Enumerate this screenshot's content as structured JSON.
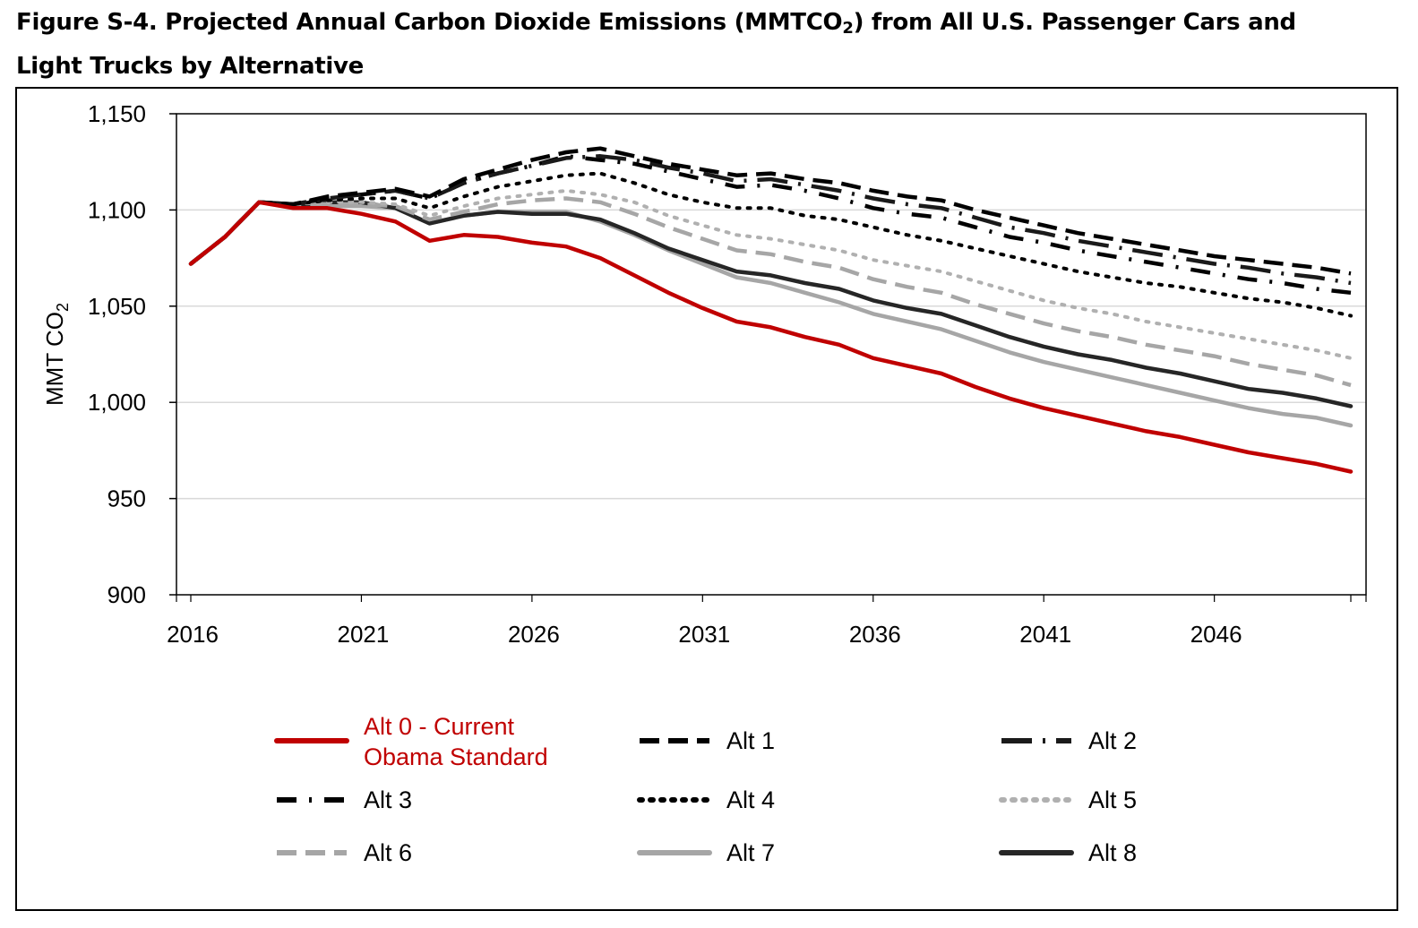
{
  "title": {
    "line1_pre": "Figure S-4. Projected Annual Carbon Dioxide Emissions (MMTCO",
    "line1_sub": "2",
    "line1_post": ") from All U.S. Passenger Cars and",
    "line2": "Light Trucks by Alternative"
  },
  "chart_data": {
    "type": "line",
    "title": "Figure S-4. Projected Annual Carbon Dioxide Emissions (MMTCO2) from All U.S. Passenger Cars and Light Trucks by Alternative",
    "ylabel": "MMT CO2",
    "ylabel_main": "MMT CO",
    "ylabel_sub": "2",
    "xlabel": "",
    "ylim": [
      900,
      1150
    ],
    "xlim": [
      2016,
      2050
    ],
    "yticks": [
      900,
      950,
      1000,
      1050,
      1100,
      1150
    ],
    "ytick_labels": [
      "900",
      "950",
      "1,000",
      "1,050",
      "1,100",
      "1,150"
    ],
    "xticks": [
      2016,
      2021,
      2026,
      2031,
      2036,
      2041,
      2046
    ],
    "xtick_labels": [
      "2016",
      "2021",
      "2026",
      "2031",
      "2036",
      "2041",
      "2046"
    ],
    "grid": "horizontal",
    "legend_position": "bottom",
    "x": [
      2016,
      2017,
      2018,
      2019,
      2020,
      2021,
      2022,
      2023,
      2024,
      2025,
      2026,
      2027,
      2028,
      2029,
      2030,
      2031,
      2032,
      2033,
      2034,
      2035,
      2036,
      2037,
      2038,
      2039,
      2040,
      2041,
      2042,
      2043,
      2044,
      2045,
      2046,
      2047,
      2048,
      2049,
      2050
    ],
    "series": [
      {
        "name": "Alt 0 - Current Obama Standard",
        "legend_lines": [
          "Alt 0 - Current",
          "Obama Standard"
        ],
        "color": "#c00000",
        "style": "solid",
        "values": [
          1072,
          1086,
          1104,
          1101,
          1101,
          1098,
          1094,
          1084,
          1087,
          1086,
          1083,
          1081,
          1075,
          1066,
          1057,
          1049,
          1042,
          1039,
          1034,
          1030,
          1023,
          1019,
          1015,
          1008,
          1002,
          997,
          993,
          989,
          985,
          982,
          978,
          974,
          971,
          968,
          964
        ]
      },
      {
        "name": "Alt 1",
        "legend_lines": [
          "Alt 1"
        ],
        "color": "#000000",
        "style": "dash",
        "values": [
          1072,
          1086,
          1104,
          1103,
          1107,
          1109,
          1111,
          1107,
          1116,
          1121,
          1126,
          1130,
          1132,
          1128,
          1124,
          1121,
          1118,
          1119,
          1116,
          1114,
          1110,
          1107,
          1105,
          1100,
          1096,
          1092,
          1088,
          1085,
          1082,
          1079,
          1076,
          1074,
          1072,
          1070,
          1067
        ]
      },
      {
        "name": "Alt 2",
        "legend_lines": [
          "Alt 2"
        ],
        "color": "#1a1a1a",
        "style": "longdashdot",
        "values": [
          1072,
          1086,
          1104,
          1103,
          1106,
          1108,
          1110,
          1106,
          1114,
          1119,
          1123,
          1127,
          1128,
          1126,
          1122,
          1119,
          1115,
          1116,
          1113,
          1110,
          1106,
          1103,
          1101,
          1096,
          1091,
          1088,
          1084,
          1081,
          1078,
          1075,
          1072,
          1070,
          1067,
          1065,
          1062
        ]
      },
      {
        "name": "Alt 3",
        "legend_lines": [
          "Alt 3"
        ],
        "color": "#000000",
        "style": "dashdot",
        "values": [
          1072,
          1086,
          1104,
          1103,
          1106,
          1108,
          1110,
          1106,
          1114,
          1119,
          1123,
          1128,
          1126,
          1124,
          1120,
          1116,
          1112,
          1113,
          1110,
          1106,
          1101,
          1098,
          1096,
          1091,
          1086,
          1083,
          1079,
          1076,
          1073,
          1070,
          1067,
          1064,
          1062,
          1059,
          1057
        ]
      },
      {
        "name": "Alt 4",
        "legend_lines": [
          "Alt 4"
        ],
        "color": "#000000",
        "style": "dot",
        "values": [
          1072,
          1086,
          1104,
          1103,
          1105,
          1106,
          1106,
          1101,
          1107,
          1112,
          1115,
          1118,
          1119,
          1114,
          1108,
          1104,
          1101,
          1101,
          1097,
          1095,
          1091,
          1087,
          1084,
          1080,
          1076,
          1072,
          1068,
          1065,
          1062,
          1060,
          1057,
          1054,
          1052,
          1049,
          1045
        ]
      },
      {
        "name": "Alt 5",
        "legend_lines": [
          "Alt 5"
        ],
        "color": "#b0b0b0",
        "style": "dot",
        "values": [
          1072,
          1086,
          1104,
          1103,
          1104,
          1104,
          1103,
          1097,
          1102,
          1106,
          1108,
          1110,
          1108,
          1104,
          1097,
          1092,
          1087,
          1085,
          1082,
          1079,
          1074,
          1071,
          1068,
          1063,
          1058,
          1053,
          1049,
          1046,
          1042,
          1039,
          1036,
          1033,
          1030,
          1027,
          1023
        ]
      },
      {
        "name": "Alt 6",
        "legend_lines": [
          "Alt 6"
        ],
        "color": "#a6a6a6",
        "style": "dash",
        "values": [
          1072,
          1086,
          1104,
          1103,
          1103,
          1103,
          1102,
          1095,
          1099,
          1103,
          1105,
          1106,
          1104,
          1098,
          1091,
          1085,
          1079,
          1077,
          1073,
          1070,
          1064,
          1060,
          1057,
          1051,
          1046,
          1041,
          1037,
          1034,
          1030,
          1027,
          1024,
          1020,
          1017,
          1014,
          1009
        ]
      },
      {
        "name": "Alt 7",
        "legend_lines": [
          "Alt 7"
        ],
        "color": "#a6a6a6",
        "style": "solid",
        "values": [
          1072,
          1086,
          1104,
          1102,
          1102,
          1102,
          1101,
          1093,
          1097,
          1099,
          1099,
          1099,
          1094,
          1087,
          1079,
          1072,
          1065,
          1062,
          1057,
          1052,
          1046,
          1042,
          1038,
          1032,
          1026,
          1021,
          1017,
          1013,
          1009,
          1005,
          1001,
          997,
          994,
          992,
          988
        ]
      },
      {
        "name": "Alt 8",
        "legend_lines": [
          "Alt 8"
        ],
        "color": "#262626",
        "style": "solid",
        "values": [
          1072,
          1086,
          1104,
          1102,
          1104,
          1104,
          1101,
          1093,
          1097,
          1099,
          1098,
          1098,
          1095,
          1088,
          1080,
          1074,
          1068,
          1066,
          1062,
          1059,
          1053,
          1049,
          1046,
          1040,
          1034,
          1029,
          1025,
          1022,
          1018,
          1015,
          1011,
          1007,
          1005,
          1002,
          998
        ]
      }
    ]
  }
}
